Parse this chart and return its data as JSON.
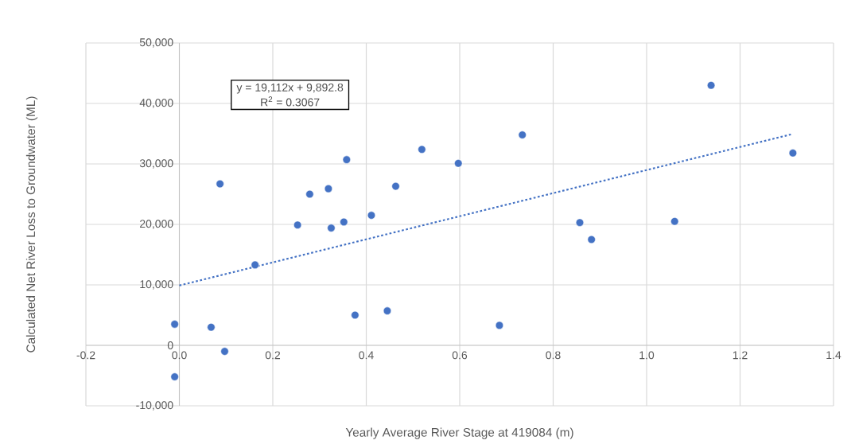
{
  "chart_data": {
    "type": "scatter",
    "xlabel": "Yearly Average River Stage at 419084 (m)",
    "ylabel": "Calculated Net River Loss to Groundwater (ML)",
    "annotations": [
      "y = 19,112x + 9,892.8",
      "R$^{2}$ = 0.3067"
    ],
    "xlim": [
      -0.2,
      1.4
    ],
    "xticks": [
      {
        "value": -0.2,
        "label": "-0.2"
      },
      {
        "value": 0,
        "label": "0.0"
      },
      {
        "value": 0.2,
        "label": "0.2"
      },
      {
        "value": 0.4,
        "label": "0.4"
      },
      {
        "value": 0.6,
        "label": "0.6"
      },
      {
        "value": 0.8,
        "label": "0.8"
      },
      {
        "value": 1.0,
        "label": "1.0"
      },
      {
        "value": 1.2,
        "label": "1.2"
      },
      {
        "value": 1.4,
        "label": "1.4"
      }
    ],
    "ylim": [
      -10000,
      50000
    ],
    "yticks": [
      {
        "value": -10000,
        "label": "-10,000"
      },
      0,
      {
        "value": 10000,
        "label": "10,000"
      },
      {
        "value": 20000,
        "label": "20,000"
      },
      {
        "value": 30000,
        "label": "30,000"
      },
      {
        "value": 40000,
        "label": "40,000"
      },
      {
        "value": 50000,
        "label": "50,000"
      }
    ],
    "grid": true,
    "series": [
      {
        "color": "#4472c4",
        "marker": "circle",
        "x": [
          -0.01,
          -0.01,
          0.068,
          0.097,
          0.087,
          0.162,
          0.253,
          0.279,
          0.319,
          0.325,
          0.352,
          0.358,
          0.376,
          0.411,
          0.445,
          0.463,
          0.519,
          0.597,
          0.685,
          0.734,
          0.857,
          0.882,
          1.06,
          1.138,
          1.313
        ],
        "values": [
          3500,
          -5200,
          3000,
          -1000,
          26700,
          13300,
          19900,
          25000,
          25900,
          19400,
          20400,
          30700,
          5000,
          21500,
          5700,
          26300,
          32400,
          30100,
          3300,
          34800,
          20300,
          17500,
          20500,
          43000,
          31800
        ]
      },
      {
        "type": "line",
        "color": "#4472c4",
        "marker": "none",
        "line_style": "dotted",
        "x": [
          0,
          1.31
        ],
        "values": [
          9900,
          34900
        ]
      }
    ]
  }
}
